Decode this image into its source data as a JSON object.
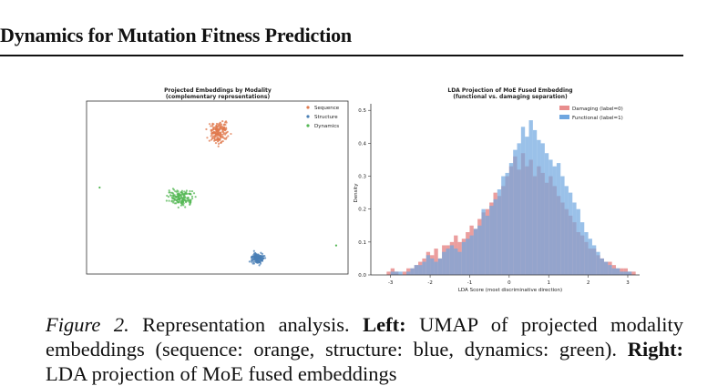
{
  "header": {
    "title": "Dynamics for Mutation Fitness Prediction"
  },
  "colors": {
    "sequence": "#e07a4e",
    "structure": "#4a7fb5",
    "dynamics": "#55b855",
    "damaging": "#e88d8d",
    "functional": "#6fa6e0",
    "overlap": "#8b86c0"
  },
  "chart_data": [
    {
      "type": "scatter",
      "title": "Projected Embeddings by Modality",
      "subtitle": "(complementary representations)",
      "xlabel": "",
      "ylabel": "",
      "axes_ticks": false,
      "legend_position": "top-right",
      "series": [
        {
          "name": "Sequence",
          "clusters": [
            {
              "center": [
                5.6,
                8.2
              ],
              "spread": [
                0.35,
                0.5
              ],
              "n": 180
            }
          ]
        },
        {
          "name": "Structure",
          "clusters": [
            {
              "center": [
                7.2,
                0.9
              ],
              "spread": [
                0.25,
                0.25
              ],
              "n": 160
            }
          ]
        },
        {
          "name": "Dynamics",
          "clusters": [
            {
              "center": [
                4.0,
                4.4
              ],
              "spread": [
                0.45,
                0.4
              ],
              "n": 170
            }
          ],
          "outliers": [
            [
              0.55,
              5.0
            ],
            [
              10.5,
              1.65
            ]
          ]
        }
      ],
      "xlim": [
        0,
        11
      ],
      "ylim": [
        0,
        10
      ]
    },
    {
      "type": "bar",
      "title": "LDA Projection of MoE Fused Embedding",
      "subtitle": "(functional vs. damaging separation)",
      "xlabel": "LDA Score (most discriminative direction)",
      "ylabel": "Density",
      "xlim": [
        -3.5,
        3.3
      ],
      "ylim": [
        0,
        0.52
      ],
      "xticks": [
        "-3",
        "-2",
        "-1",
        "0",
        "1",
        "2",
        "3"
      ],
      "yticks": [
        "0.0",
        "0.1",
        "0.2",
        "0.3",
        "0.4",
        "0.5"
      ],
      "legend_position": "top-right",
      "bin_width": 0.1,
      "series": [
        {
          "name": "Damaging (label=0)",
          "bin_start": -3.5,
          "values": [
            0,
            0,
            0,
            0,
            0.01,
            0.02,
            0.01,
            0,
            0.01,
            0.02,
            0.02,
            0.03,
            0.04,
            0.05,
            0.07,
            0.06,
            0.08,
            0.05,
            0.09,
            0.09,
            0.1,
            0.12,
            0.1,
            0.11,
            0.13,
            0.15,
            0.14,
            0.17,
            0.19,
            0.2,
            0.22,
            0.25,
            0.24,
            0.27,
            0.3,
            0.33,
            0.36,
            0.32,
            0.37,
            0.33,
            0.35,
            0.3,
            0.33,
            0.31,
            0.28,
            0.3,
            0.27,
            0.24,
            0.22,
            0.2,
            0.18,
            0.16,
            0.13,
            0.12,
            0.1,
            0.08,
            0.08,
            0.06,
            0.05,
            0.04,
            0.04,
            0.03,
            0.02,
            0.02,
            0.02,
            0.01,
            0.01,
            0
          ]
        },
        {
          "name": "Functional (label=1)",
          "bin_start": -3.5,
          "values": [
            0,
            0,
            0,
            0,
            0,
            0.01,
            0.01,
            0.01,
            0,
            0.01,
            0.02,
            0.03,
            0.03,
            0.04,
            0.06,
            0.05,
            0.04,
            0.05,
            0.07,
            0.08,
            0.09,
            0.08,
            0.07,
            0.1,
            0.11,
            0.12,
            0.14,
            0.15,
            0.2,
            0.18,
            0.21,
            0.23,
            0.26,
            0.3,
            0.31,
            0.34,
            0.38,
            0.4,
            0.45,
            0.42,
            0.47,
            0.44,
            0.41,
            0.4,
            0.37,
            0.35,
            0.33,
            0.34,
            0.3,
            0.27,
            0.25,
            0.22,
            0.2,
            0.16,
            0.13,
            0.11,
            0.09,
            0.07,
            0.05,
            0.04,
            0.03,
            0.02,
            0.02,
            0.01,
            0.01,
            0.01,
            0,
            0
          ]
        }
      ]
    }
  ],
  "caption": {
    "label": "Figure 2.",
    "part1": " Representation analysis. ",
    "left_label": "Left:",
    "part2": " UMAP of projected modality embeddings (sequence: orange, structure: blue, dynamics: green). ",
    "right_label": "Right:",
    "part3": " LDA projection of MoE fused embeddings"
  }
}
